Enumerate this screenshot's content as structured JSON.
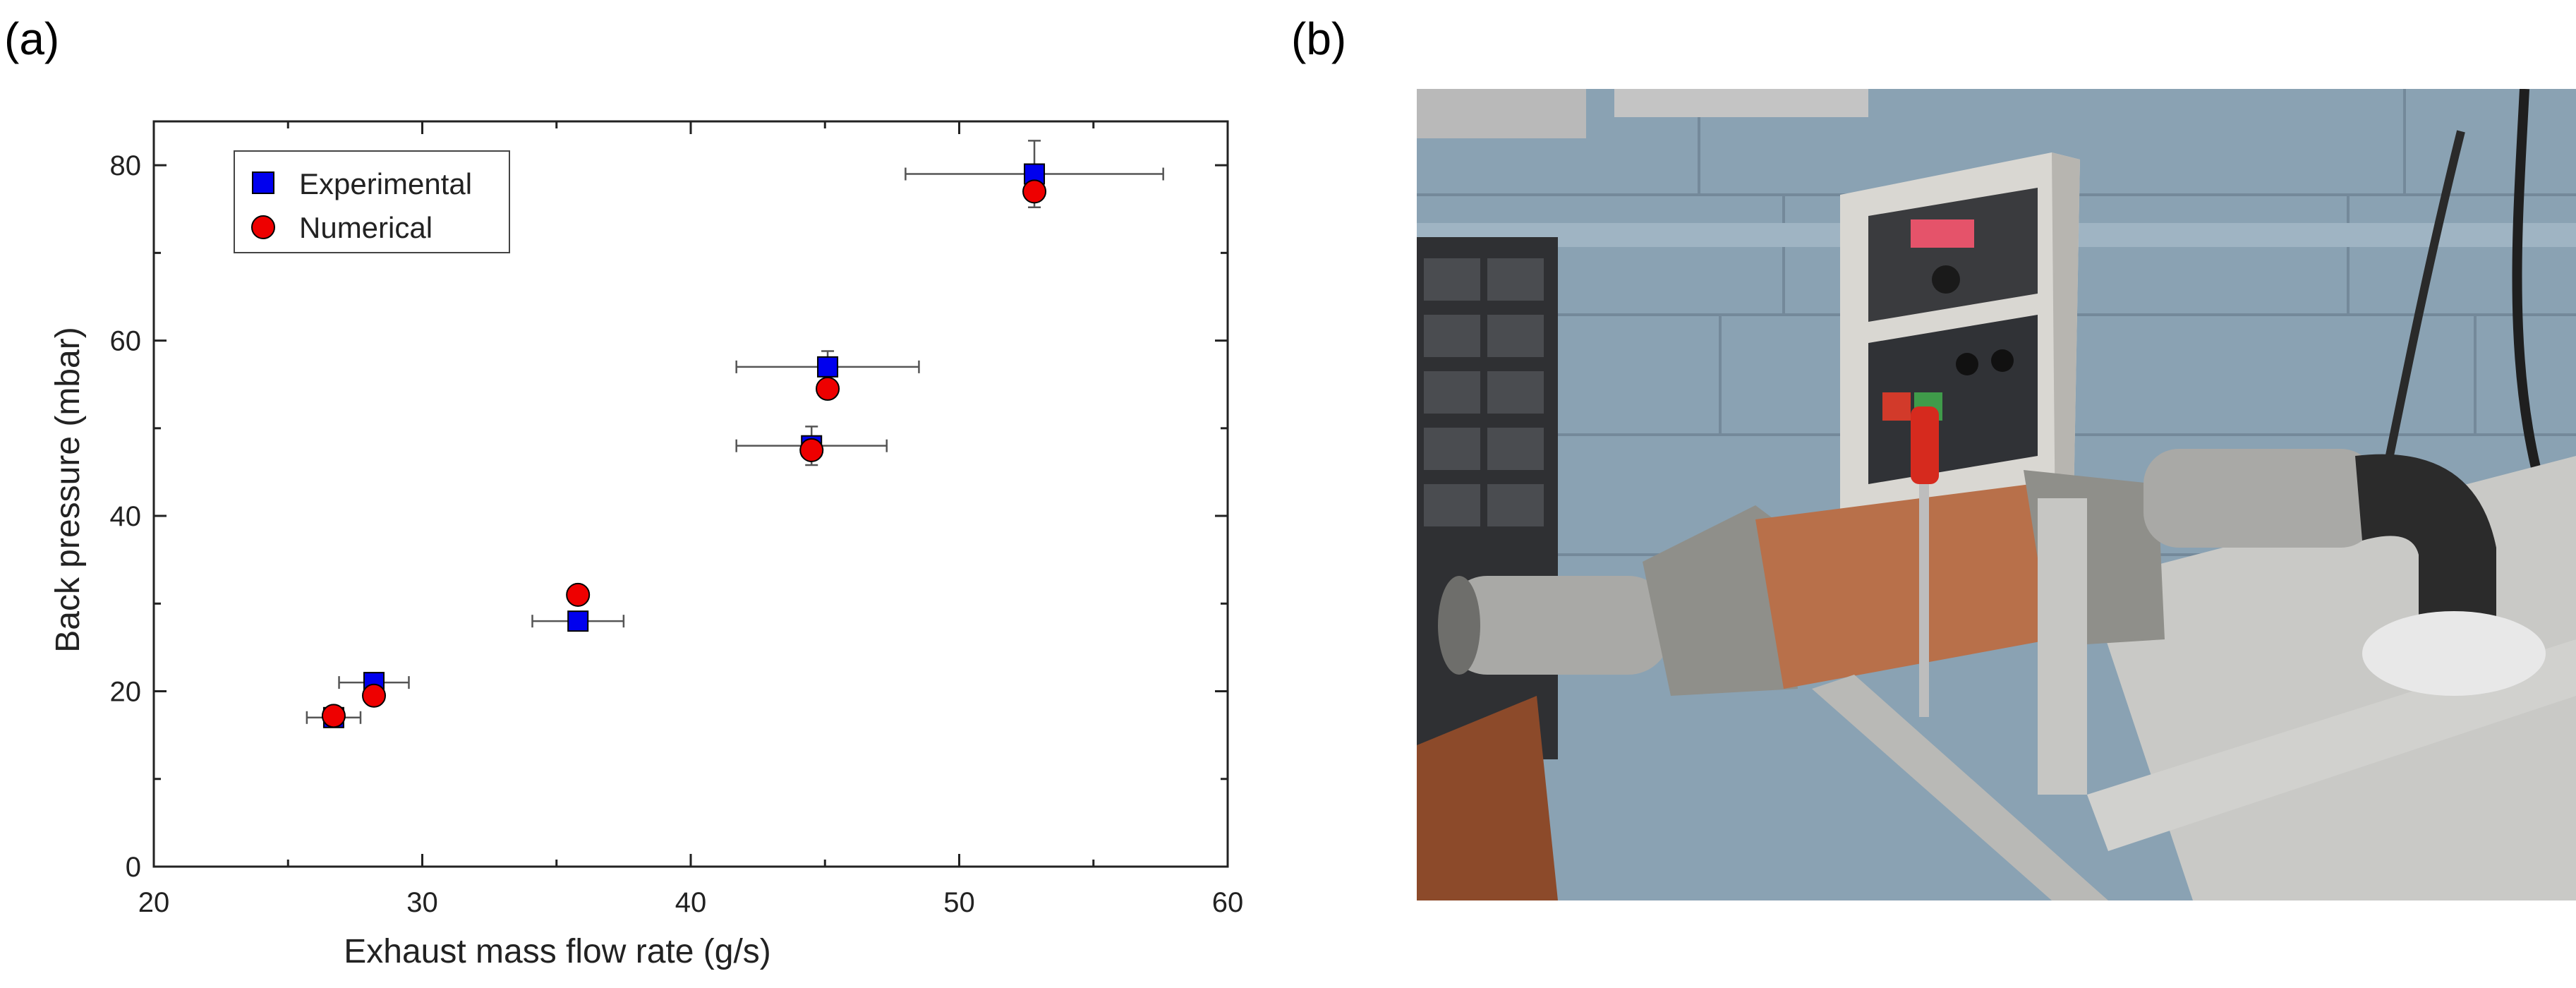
{
  "panels": {
    "a": "(a)",
    "b": "(b)"
  },
  "chart_data": {
    "type": "scatter",
    "xlabel": "Exhaust mass flow rate  (g/s)",
    "ylabel": "Back pressure (mbar)",
    "xlim": [
      20,
      60
    ],
    "ylim": [
      0,
      85
    ],
    "x_ticks": [
      20,
      30,
      40,
      50,
      60
    ],
    "y_ticks": [
      0,
      20,
      40,
      60,
      80
    ],
    "grid": false,
    "legend_position": "top-left",
    "series": [
      {
        "name": "Experimental",
        "marker": "square",
        "color": "#0000ee",
        "points": [
          {
            "x": 26.7,
            "y": 17.0,
            "xerr": 1.0,
            "yerr": 0.6
          },
          {
            "x": 28.2,
            "y": 21.0,
            "xerr": 1.3,
            "yerr": 0.8
          },
          {
            "x": 35.8,
            "y": 28.0,
            "xerr": 1.7,
            "yerr": 1.0
          },
          {
            "x": 44.5,
            "y": 48.0,
            "xerr": 2.8,
            "yerr": 2.2
          },
          {
            "x": 45.1,
            "y": 57.0,
            "xerr": 3.4,
            "yerr": 1.8
          },
          {
            "x": 52.8,
            "y": 79.0,
            "xerr": 4.8,
            "yerr": 3.8
          }
        ]
      },
      {
        "name": "Numerical",
        "marker": "circle",
        "color": "#ee0000",
        "points": [
          {
            "x": 26.7,
            "y": 17.2
          },
          {
            "x": 28.2,
            "y": 19.5
          },
          {
            "x": 35.8,
            "y": 31.0
          },
          {
            "x": 44.5,
            "y": 47.5
          },
          {
            "x": 45.1,
            "y": 54.5
          },
          {
            "x": 52.8,
            "y": 77.0
          }
        ]
      }
    ]
  },
  "photo": {
    "colors": {
      "wall": "#8aa2b3",
      "copper": "#b8704a",
      "steel": "#a9a9a6",
      "cabinet": "#d9d7d2",
      "dark": "#2b2b2b",
      "red_handle": "#d62a1e",
      "bench_wood": "#8c4a2a"
    }
  }
}
